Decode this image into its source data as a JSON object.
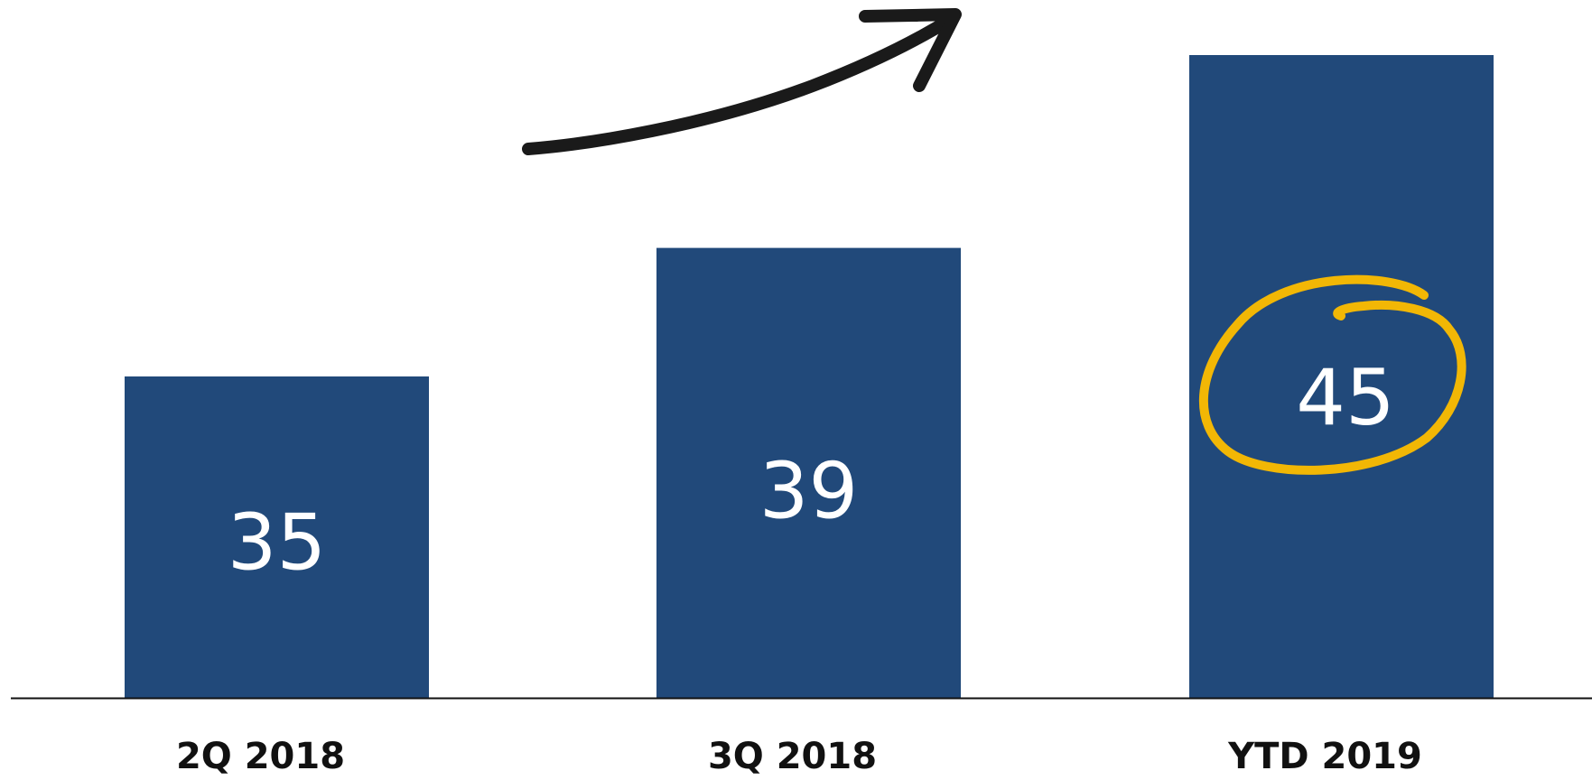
{
  "chart_data": {
    "type": "bar",
    "categories": [
      "2Q 2018",
      "3Q 2018",
      "YTD 2019"
    ],
    "values": [
      35,
      39,
      45
    ],
    "title": "",
    "xlabel": "",
    "ylabel": "",
    "ylim": [
      25,
      45
    ],
    "grid": false,
    "legend": "none",
    "highlight_category": "YTD 2019",
    "annotations": [
      "upward-trend-arrow",
      "highlight-circle"
    ]
  },
  "colors": {
    "bar": "#21497a",
    "axis": "#111111",
    "arrow": "#1a1a1a",
    "highlight": "#f2b705",
    "label": "#ffffff"
  }
}
